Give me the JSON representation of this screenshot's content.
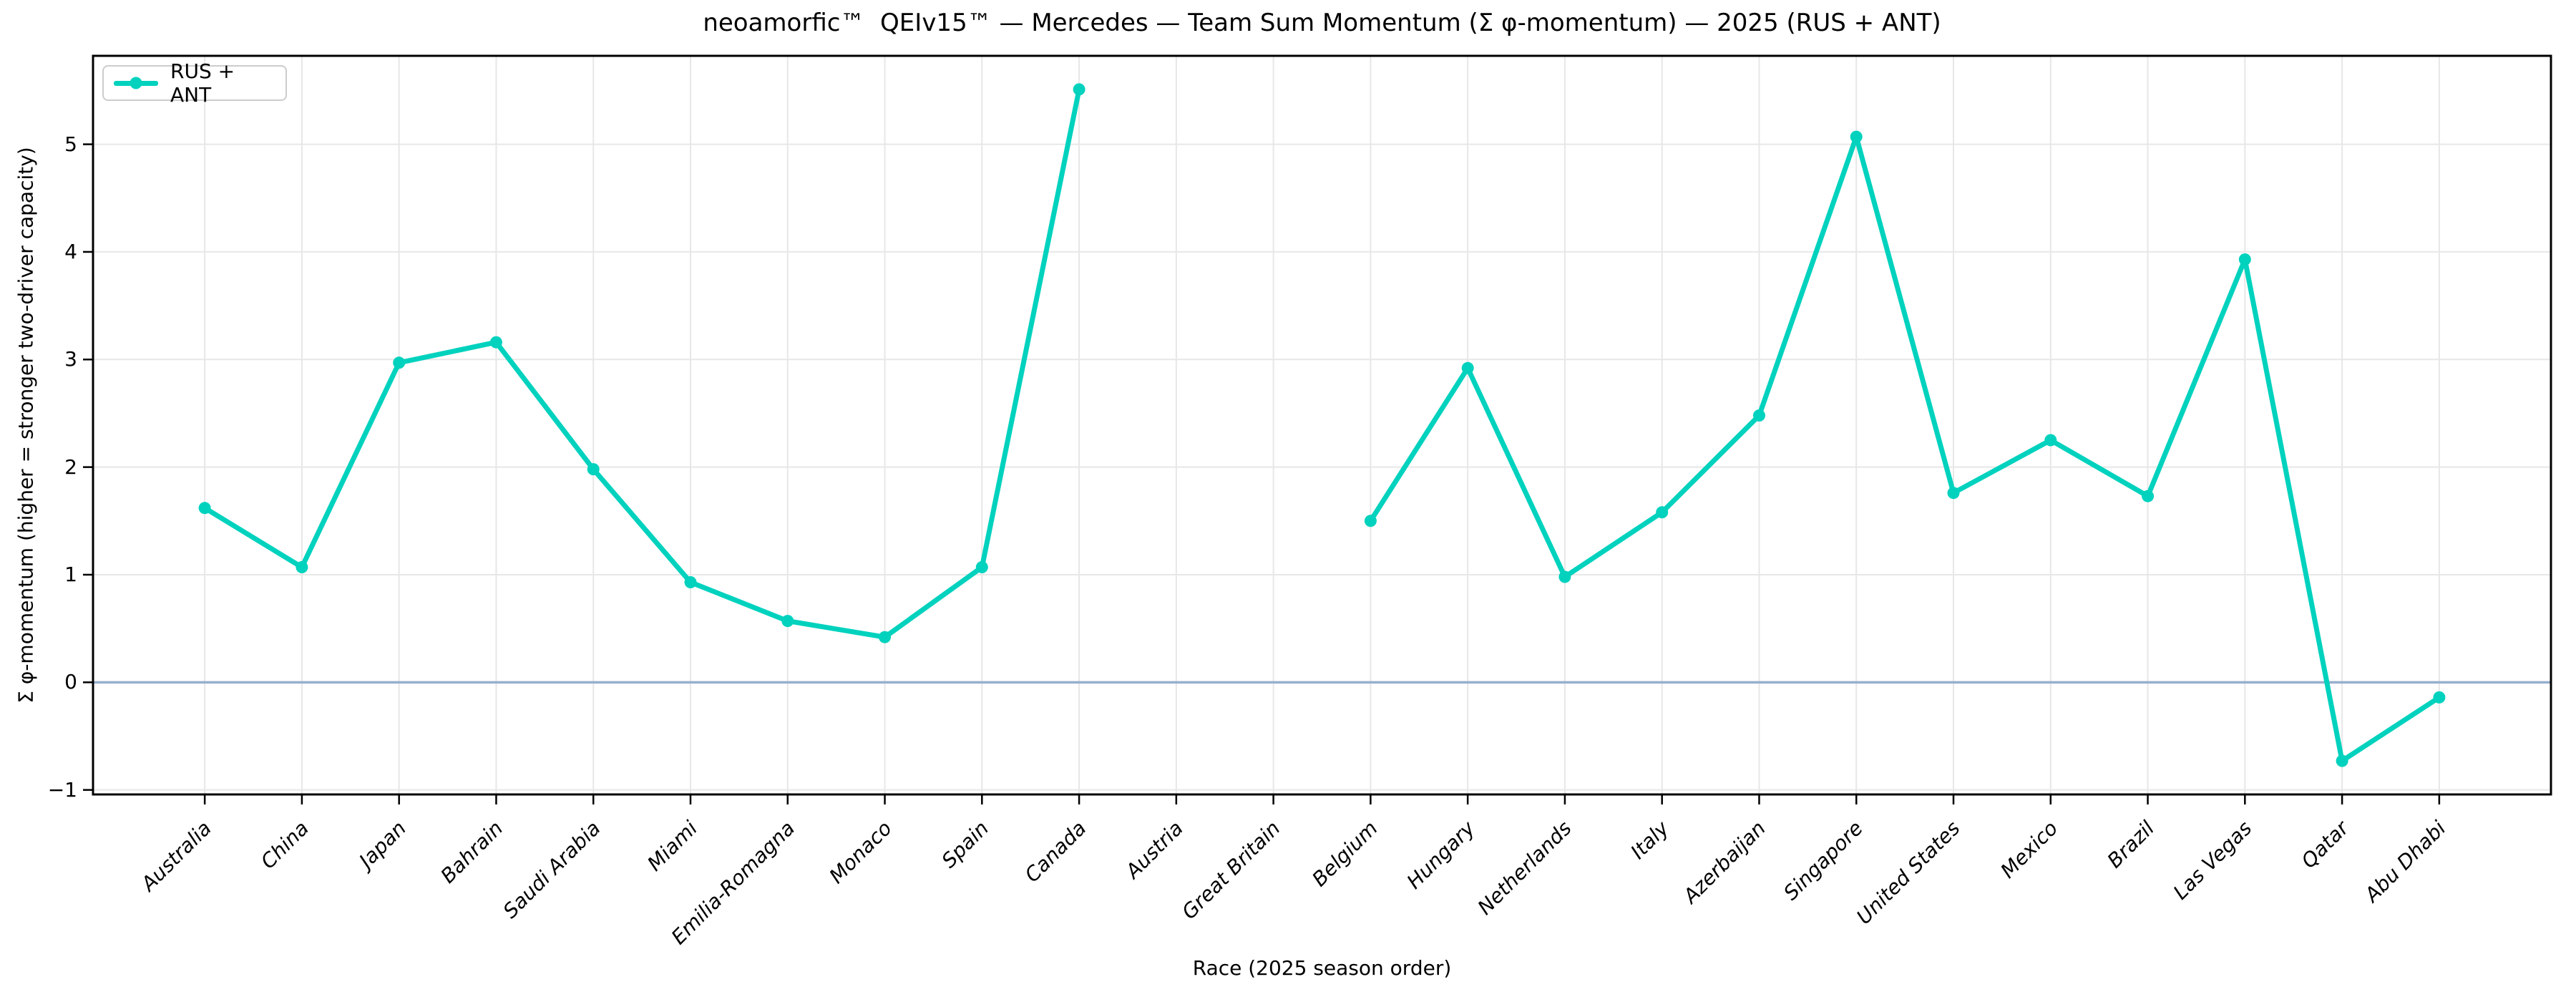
{
  "chart_data": {
    "type": "line",
    "title": "neoamorfic™  QEIv15™ — Mercedes — Team Sum Momentum (Σ φ-momentum) — 2025 (RUS + ANT)",
    "xlabel": "Race (2025 season order)",
    "ylabel": "Σ φ-momentum (higher = stronger two-driver capacity)",
    "categories": [
      "Australia",
      "China",
      "Japan",
      "Bahrain",
      "Saudi Arabia",
      "Miami",
      "Emilia-Romagna",
      "Monaco",
      "Spain",
      "Canada",
      "Austria",
      "Great Britain",
      "Belgium",
      "Hungary",
      "Netherlands",
      "Italy",
      "Azerbaijan",
      "Singapore",
      "United States",
      "Mexico",
      "Brazil",
      "Las Vegas",
      "Qatar",
      "Abu Dhabi"
    ],
    "series": [
      {
        "name": "RUS + ANT",
        "color": "#00D2BE",
        "values": [
          1.62,
          1.07,
          2.97,
          3.16,
          1.98,
          0.93,
          0.57,
          0.42,
          1.07,
          5.51,
          null,
          null,
          1.5,
          2.92,
          0.98,
          1.58,
          2.48,
          5.07,
          1.76,
          2.25,
          1.73,
          3.93,
          -0.73,
          -0.14
        ]
      }
    ],
    "yticks": [
      -1,
      0,
      1,
      2,
      3,
      4,
      5
    ],
    "yticklabels": [
      "−1",
      "0",
      "1",
      "2",
      "3",
      "4",
      "5"
    ],
    "ylim": [
      -1.042,
      5.822
    ],
    "x_margin_units": 1.15,
    "grid": true,
    "grid_color": "#e7e7e7",
    "zero_line": {
      "y": 0,
      "color": "#96afcd"
    },
    "spine_color": "#000000",
    "background": "#ffffff",
    "legend_position": "upper left"
  }
}
